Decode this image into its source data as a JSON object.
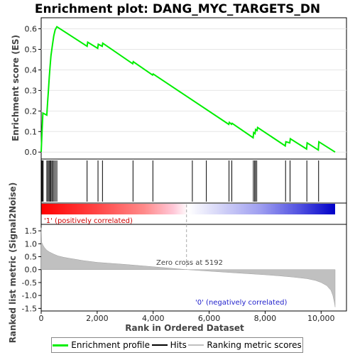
{
  "chart_data": {
    "type": "line",
    "title": "Enrichment plot: DANG_MYC_TARGETS_DN",
    "top_panel": {
      "ylabel": "Enrichment score (ES)",
      "ylim": [
        -0.02,
        0.64
      ],
      "yticks": [
        "0.0",
        "0.1",
        "0.2",
        "0.3",
        "0.4",
        "0.5",
        "0.6"
      ],
      "series": [
        {
          "name": "Enrichment profile",
          "x": [
            0,
            30,
            60,
            200,
            230,
            260,
            290,
            320,
            350,
            400,
            450,
            500,
            560,
            1640,
            1660,
            2020,
            2040,
            2180,
            2200,
            3270,
            3290,
            3980,
            4000,
            6700,
            6720,
            6800,
            6820,
            7570,
            7590,
            7640,
            7660,
            7710,
            7730,
            8720,
            8740,
            8880,
            8900,
            9480,
            9500,
            9900,
            9920,
            10500
          ],
          "values": [
            0.0,
            0.1,
            0.19,
            0.18,
            0.245,
            0.305,
            0.365,
            0.42,
            0.47,
            0.52,
            0.565,
            0.595,
            0.61,
            0.515,
            0.535,
            0.505,
            0.525,
            0.515,
            0.53,
            0.43,
            0.44,
            0.375,
            0.38,
            0.135,
            0.145,
            0.135,
            0.14,
            0.07,
            0.095,
            0.09,
            0.11,
            0.105,
            0.12,
            0.03,
            0.05,
            0.045,
            0.065,
            0.015,
            0.045,
            0.01,
            0.05,
            0.0
          ]
        }
      ]
    },
    "hits": {
      "name": "Hits",
      "positions": [
        20,
        45,
        70,
        200,
        240,
        280,
        310,
        345,
        380,
        420,
        460,
        510,
        560,
        1640,
        2030,
        2190,
        3280,
        3990,
        5400,
        5900,
        6710,
        6810,
        7580,
        7630,
        7650,
        7700,
        8730,
        8890,
        9490,
        9910
      ]
    },
    "ranking_panel": {
      "ylabel": "Ranked list metric (Signal2Noise)",
      "ylim": [
        -1.6,
        1.75
      ],
      "yticks": [
        "1.5",
        "1.0",
        "0.5",
        "0.0",
        "-0.5",
        "-1.0",
        "-1.5"
      ],
      "series": [
        {
          "name": "Ranking metric scores",
          "x": [
            0,
            20,
            60,
            120,
            200,
            300,
            450,
            600,
            800,
            1000,
            1500,
            2000,
            3000,
            4000,
            5192,
            6000,
            7000,
            8000,
            8500,
            9000,
            9500,
            9800,
            10000,
            10200,
            10350,
            10420,
            10480,
            10500
          ],
          "values": [
            1.62,
            1.05,
            0.95,
            0.85,
            0.75,
            0.68,
            0.6,
            0.53,
            0.48,
            0.44,
            0.35,
            0.28,
            0.2,
            0.11,
            0.0,
            -0.06,
            -0.13,
            -0.2,
            -0.24,
            -0.29,
            -0.35,
            -0.42,
            -0.5,
            -0.62,
            -0.8,
            -1.0,
            -1.3,
            -1.45
          ]
        }
      ],
      "zero_cross_label": "Zero cross at 5192",
      "zero_cross": 5192,
      "pos_label": "'1' (positively correlated)",
      "neg_label": "'0' (negatively correlated)"
    },
    "xlabel": "Rank in Ordered Dataset",
    "xlim": [
      0,
      10500
    ],
    "xticks": [
      "0",
      "2,000",
      "4,000",
      "6,000",
      "8,000",
      "10,000"
    ],
    "legend": [
      "Enrichment profile",
      "Hits",
      "Ranking metric scores"
    ],
    "legend_placement": "bottom",
    "colors": {
      "profile": "#00ee00",
      "hits": "#000000",
      "ranking_fill": "#c0c0c0",
      "pos_text": "#cc0000",
      "neg_text": "#2222cc"
    }
  }
}
